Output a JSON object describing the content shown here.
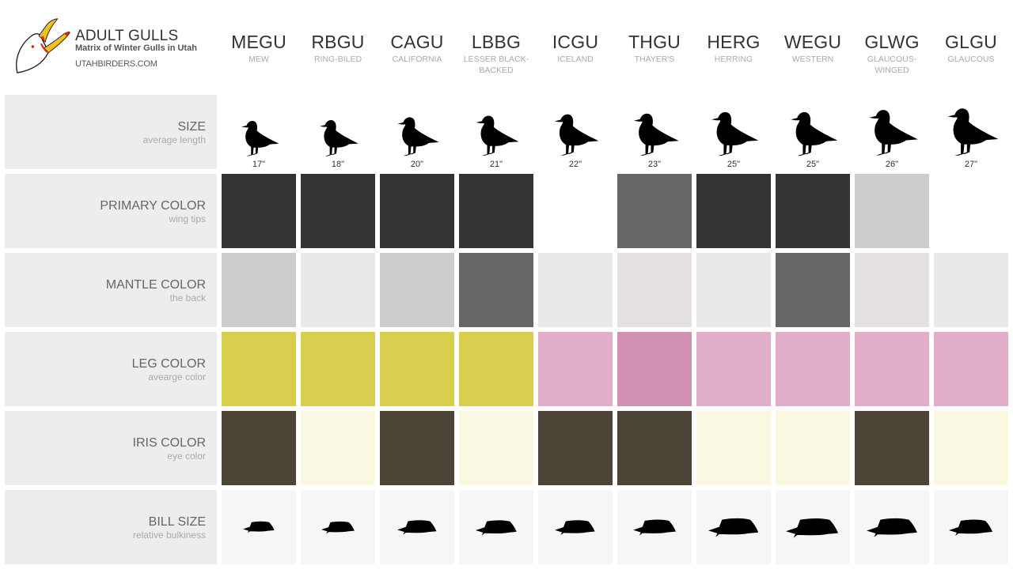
{
  "header": {
    "title": "ADULT GULLS",
    "subtitle": "Matrix of Winter Gulls in Utah",
    "url": "UTAHBIRDERS.COM",
    "logo_icon": "gull-head-logo"
  },
  "rows": [
    {
      "title": "SIZE",
      "subtitle": "average length"
    },
    {
      "title": "PRIMARY COLOR",
      "subtitle": "wing tips"
    },
    {
      "title": "MANTLE COLOR",
      "subtitle": "the back"
    },
    {
      "title": "LEG COLOR",
      "subtitle": "avearge color"
    },
    {
      "title": "IRIS COLOR",
      "subtitle": "eye color"
    },
    {
      "title": "BILL SIZE",
      "subtitle": "relative bulkiness"
    }
  ],
  "species": [
    {
      "code": "MEGU",
      "name": "MEW",
      "size": "17\"",
      "size_scale": 0.82,
      "primary": "#333333",
      "mantle": "#cccccc",
      "leg": "#d9cf4e",
      "iris": "#4b4437",
      "bill_scale": 0.72
    },
    {
      "code": "RBGU",
      "name": "RING-BILED",
      "size": "18\"",
      "size_scale": 0.84,
      "primary": "#333333",
      "mantle": "#e9e9e9",
      "leg": "#d9cf4e",
      "iris": "#faf8e0",
      "bill_scale": 0.76
    },
    {
      "code": "CAGU",
      "name": "CALIFORNIA",
      "size": "20\"",
      "size_scale": 0.9,
      "primary": "#333333",
      "mantle": "#cccccc",
      "leg": "#d9cf4e",
      "iris": "#4b4437",
      "bill_scale": 0.9
    },
    {
      "code": "LBBG",
      "name": "LESSER BLACK-BACKED",
      "size": "21\"",
      "size_scale": 0.93,
      "primary": "#333333",
      "mantle": "#666666",
      "leg": "#d9cf4e",
      "iris": "#faf8e0",
      "bill_scale": 0.94
    },
    {
      "code": "ICGU",
      "name": "ICELAND",
      "size": "22\"",
      "size_scale": 0.96,
      "primary": "#ffffff",
      "mantle": "#e9e9e9",
      "leg": "#e0aec9",
      "iris": "#4b4437",
      "bill_scale": 0.92
    },
    {
      "code": "THGU",
      "name": "THAYER'S",
      "size": "23\"",
      "size_scale": 0.98,
      "primary": "#666666",
      "mantle": "#e5e1e0",
      "leg": "#d290b3",
      "iris": "#4b4437",
      "bill_scale": 0.98
    },
    {
      "code": "HERG",
      "name": "HERRING",
      "size": "25\"",
      "size_scale": 1.02,
      "primary": "#333333",
      "mantle": "#e9e9e9",
      "leg": "#e0aec9",
      "iris": "#faf8e0",
      "bill_scale": 1.15
    },
    {
      "code": "WEGU",
      "name": "WESTERN",
      "size": "25\"",
      "size_scale": 1.02,
      "primary": "#333333",
      "mantle": "#666666",
      "leg": "#e0aec9",
      "iris": "#faf8e0",
      "bill_scale": 1.2
    },
    {
      "code": "GLWG",
      "name": "GLAUCOUS-WINGED",
      "size": "26\"",
      "size_scale": 1.06,
      "primary": "#cccccc",
      "mantle": "#e5e1e0",
      "leg": "#e0aec9",
      "iris": "#4b4437",
      "bill_scale": 1.16
    },
    {
      "code": "GLGU",
      "name": "GLAUCOUS",
      "size": "27\"",
      "size_scale": 1.1,
      "primary": "#ffffff",
      "mantle": "#e9e9e9",
      "leg": "#e0aec9",
      "iris": "#faf8e0",
      "bill_scale": 1.0
    }
  ],
  "colors": {
    "label_bg": "#ededed",
    "bill_bg": "#f6f6f6",
    "header_text": "#333333",
    "subtext": "#aaaaaa"
  }
}
